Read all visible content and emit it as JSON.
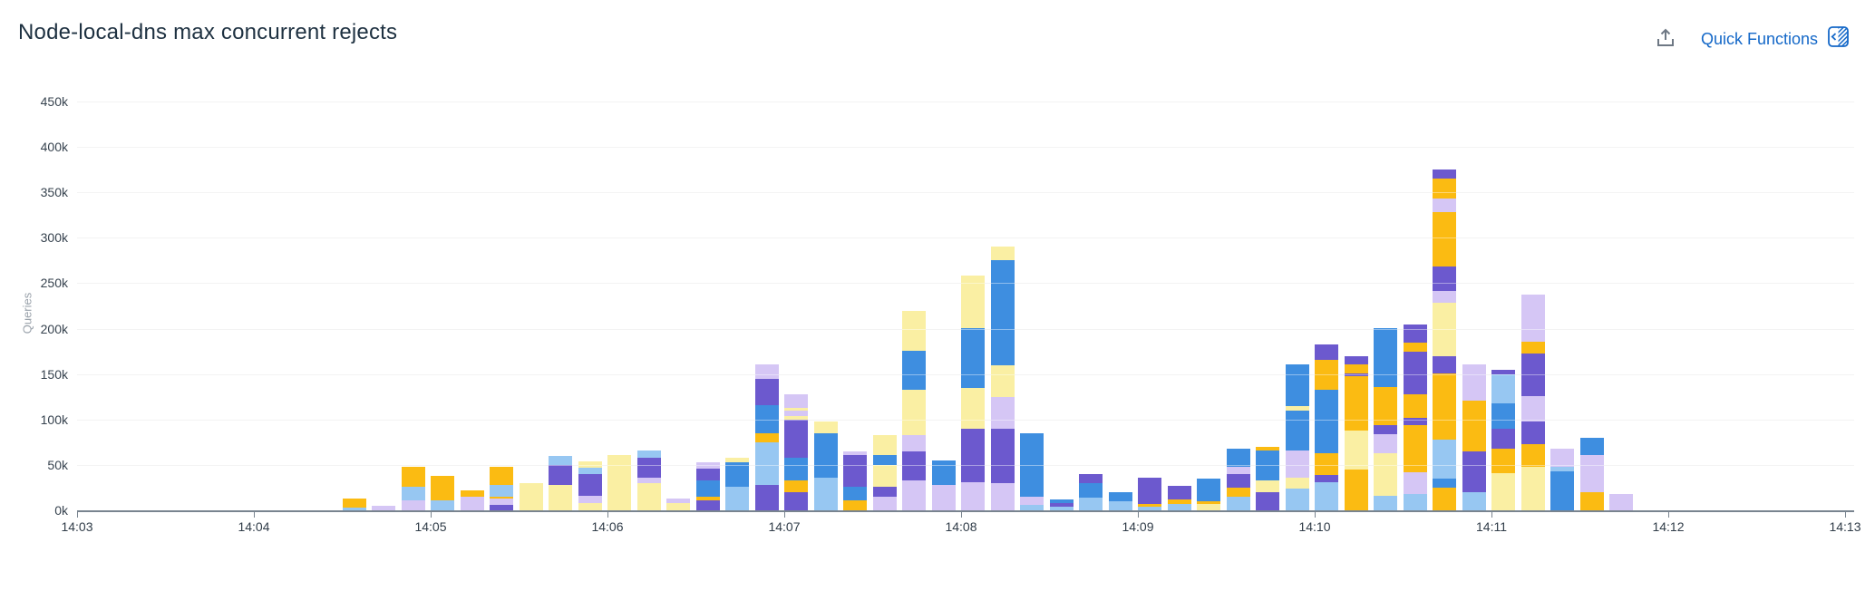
{
  "header": {
    "title": "Node-local-dns max concurrent rejects",
    "quick_functions_label": "Quick Functions"
  },
  "colors": {
    "link_blue": "#1468c8",
    "icon_gray": "#6e7884",
    "title_text": "#1e3141",
    "axis_text": "#37434f",
    "muted_text": "#9aa2ab",
    "gridline": "#ebebeb",
    "axis_line": "#79848f"
  },
  "chart_data": {
    "type": "bar",
    "stacked": true,
    "title": "Node-local-dns max concurrent rejects",
    "xlabel": "",
    "ylabel": "Queries",
    "ylim": [
      0,
      450000
    ],
    "ytick_step": 50000,
    "ytick_labels": [
      "0k",
      "50k",
      "100k",
      "150k",
      "200k",
      "250k",
      "300k",
      "350k",
      "400k",
      "450k"
    ],
    "xtick_labels": [
      "14:03",
      "14:04",
      "14:05",
      "14:06",
      "14:07",
      "14:08",
      "14:09",
      "14:10",
      "14:11",
      "14:12",
      "14:13"
    ],
    "bar_interval_seconds": 10,
    "values_unit": "thousands of queries (k)",
    "grid": true,
    "legend": "none",
    "palette": {
      "gold": "#fbbb12",
      "paleYellow": "#faefa3",
      "blue": "#3e8ee0",
      "lightBlue": "#97c7f2",
      "purple": "#6c59ce",
      "lavender": "#d5c6f5"
    },
    "bars": [
      {
        "time": "14:04:30",
        "segments": [
          [
            "lightBlue",
            3
          ],
          [
            "gold",
            10
          ]
        ]
      },
      {
        "time": "14:04:40",
        "segments": [
          [
            "lavender",
            5
          ]
        ]
      },
      {
        "time": "14:04:50",
        "segments": [
          [
            "lavender",
            11
          ],
          [
            "lightBlue",
            15
          ],
          [
            "gold",
            22
          ]
        ]
      },
      {
        "time": "14:05:00",
        "segments": [
          [
            "lightBlue",
            11
          ],
          [
            "gold",
            27
          ]
        ]
      },
      {
        "time": "14:05:10",
        "segments": [
          [
            "lavender",
            15
          ],
          [
            "gold",
            7
          ]
        ]
      },
      {
        "time": "14:05:20",
        "segments": [
          [
            "purple",
            6
          ],
          [
            "lavender",
            7
          ],
          [
            "gold",
            2
          ],
          [
            "lightBlue",
            13
          ],
          [
            "gold",
            20
          ]
        ]
      },
      {
        "time": "14:05:30",
        "segments": [
          [
            "paleYellow",
            30
          ]
        ]
      },
      {
        "time": "14:05:40",
        "segments": [
          [
            "paleYellow",
            28
          ],
          [
            "purple",
            22
          ],
          [
            "lightBlue",
            10
          ]
        ]
      },
      {
        "time": "14:05:50",
        "segments": [
          [
            "paleYellow",
            8
          ],
          [
            "lavender",
            8
          ],
          [
            "purple",
            24
          ],
          [
            "lightBlue",
            7
          ],
          [
            "paleYellow",
            7
          ]
        ]
      },
      {
        "time": "14:06:00",
        "segments": [
          [
            "paleYellow",
            61
          ]
        ]
      },
      {
        "time": "14:06:10",
        "segments": [
          [
            "paleYellow",
            30
          ],
          [
            "lavender",
            6
          ],
          [
            "purple",
            22
          ],
          [
            "lightBlue",
            8
          ]
        ]
      },
      {
        "time": "14:06:20",
        "segments": [
          [
            "paleYellow",
            8
          ],
          [
            "lavender",
            5
          ]
        ]
      },
      {
        "time": "14:06:30",
        "segments": [
          [
            "purple",
            11
          ],
          [
            "gold",
            4
          ],
          [
            "blue",
            18
          ],
          [
            "purple",
            13
          ],
          [
            "lavender",
            7
          ]
        ]
      },
      {
        "time": "14:06:40",
        "segments": [
          [
            "lightBlue",
            26
          ],
          [
            "blue",
            27
          ],
          [
            "paleYellow",
            5
          ]
        ]
      },
      {
        "time": "14:06:50",
        "segments": [
          [
            "purple",
            28
          ],
          [
            "lightBlue",
            47
          ],
          [
            "gold",
            10
          ],
          [
            "blue",
            31
          ],
          [
            "purple",
            29
          ],
          [
            "lavender",
            16
          ]
        ]
      },
      {
        "time": "14:07:00",
        "segments": [
          [
            "purple",
            20
          ],
          [
            "gold",
            13
          ],
          [
            "blue",
            25
          ],
          [
            "purple",
            42
          ],
          [
            "paleYellow",
            4
          ],
          [
            "lavender",
            6
          ],
          [
            "paleYellow",
            3
          ],
          [
            "lavender",
            15
          ]
        ]
      },
      {
        "time": "14:07:10",
        "segments": [
          [
            "lightBlue",
            36
          ],
          [
            "blue",
            49
          ],
          [
            "paleYellow",
            13
          ]
        ]
      },
      {
        "time": "14:07:20",
        "segments": [
          [
            "gold",
            11
          ],
          [
            "blue",
            15
          ],
          [
            "purple",
            35
          ],
          [
            "lavender",
            4
          ]
        ]
      },
      {
        "time": "14:07:30",
        "segments": [
          [
            "lavender",
            15
          ],
          [
            "purple",
            11
          ],
          [
            "paleYellow",
            24
          ],
          [
            "blue",
            11
          ],
          [
            "paleYellow",
            22
          ]
        ]
      },
      {
        "time": "14:07:40",
        "segments": [
          [
            "lavender",
            33
          ],
          [
            "purple",
            32
          ],
          [
            "lavender",
            18
          ],
          [
            "paleYellow",
            50
          ],
          [
            "blue",
            43
          ],
          [
            "paleYellow",
            44
          ]
        ]
      },
      {
        "time": "14:07:50",
        "segments": [
          [
            "lavender",
            28
          ],
          [
            "blue",
            27
          ]
        ]
      },
      {
        "time": "14:08:00",
        "segments": [
          [
            "lavender",
            31
          ],
          [
            "purple",
            59
          ],
          [
            "paleYellow",
            45
          ],
          [
            "blue",
            65
          ],
          [
            "paleYellow",
            58
          ]
        ]
      },
      {
        "time": "14:08:10",
        "segments": [
          [
            "lavender",
            30
          ],
          [
            "purple",
            60
          ],
          [
            "lavender",
            35
          ],
          [
            "paleYellow",
            35
          ],
          [
            "blue",
            115
          ],
          [
            "paleYellow",
            15
          ]
        ]
      },
      {
        "time": "14:08:20",
        "segments": [
          [
            "lightBlue",
            6
          ],
          [
            "lavender",
            9
          ],
          [
            "blue",
            70
          ]
        ]
      },
      {
        "time": "14:08:30",
        "segments": [
          [
            "lightBlue",
            4
          ],
          [
            "purple",
            4
          ],
          [
            "blue",
            4
          ]
        ]
      },
      {
        "time": "14:08:40",
        "segments": [
          [
            "lightBlue",
            14
          ],
          [
            "blue",
            16
          ],
          [
            "purple",
            10
          ]
        ]
      },
      {
        "time": "14:08:50",
        "segments": [
          [
            "lightBlue",
            10
          ],
          [
            "blue",
            10
          ]
        ]
      },
      {
        "time": "14:09:00",
        "segments": [
          [
            "lightBlue",
            4
          ],
          [
            "gold",
            3
          ],
          [
            "purple",
            29
          ]
        ]
      },
      {
        "time": "14:09:10",
        "segments": [
          [
            "lightBlue",
            7
          ],
          [
            "gold",
            5
          ],
          [
            "purple",
            15
          ]
        ]
      },
      {
        "time": "14:09:20",
        "segments": [
          [
            "paleYellow",
            7
          ],
          [
            "gold",
            3
          ],
          [
            "blue",
            25
          ]
        ]
      },
      {
        "time": "14:09:30",
        "segments": [
          [
            "lightBlue",
            15
          ],
          [
            "gold",
            10
          ],
          [
            "purple",
            15
          ],
          [
            "lavender",
            8
          ],
          [
            "blue",
            20
          ]
        ]
      },
      {
        "time": "14:09:40",
        "segments": [
          [
            "purple",
            20
          ],
          [
            "paleYellow",
            13
          ],
          [
            "blue",
            33
          ],
          [
            "gold",
            4
          ]
        ]
      },
      {
        "time": "14:09:50",
        "segments": [
          [
            "lightBlue",
            24
          ],
          [
            "paleYellow",
            12
          ],
          [
            "lavender",
            30
          ],
          [
            "blue",
            44
          ],
          [
            "paleYellow",
            5
          ],
          [
            "blue",
            46
          ]
        ]
      },
      {
        "time": "14:10:00",
        "segments": [
          [
            "lightBlue",
            31
          ],
          [
            "purple",
            8
          ],
          [
            "gold",
            24
          ],
          [
            "blue",
            70
          ],
          [
            "gold",
            33
          ],
          [
            "purple",
            17
          ]
        ]
      },
      {
        "time": "14:10:10",
        "segments": [
          [
            "gold",
            45
          ],
          [
            "paleYellow",
            43
          ],
          [
            "gold",
            60
          ],
          [
            "purple",
            3
          ],
          [
            "gold",
            10
          ],
          [
            "purple",
            9
          ]
        ]
      },
      {
        "time": "14:10:20",
        "segments": [
          [
            "lightBlue",
            16
          ],
          [
            "paleYellow",
            47
          ],
          [
            "lavender",
            21
          ],
          [
            "purple",
            10
          ],
          [
            "gold",
            42
          ],
          [
            "blue",
            65
          ]
        ]
      },
      {
        "time": "14:10:30",
        "segments": [
          [
            "lightBlue",
            18
          ],
          [
            "lavender",
            24
          ],
          [
            "gold",
            52
          ],
          [
            "purple",
            8
          ],
          [
            "gold",
            26
          ],
          [
            "purple",
            47
          ],
          [
            "gold",
            10
          ],
          [
            "purple",
            20
          ]
        ]
      },
      {
        "time": "14:10:40",
        "segments": [
          [
            "gold",
            25
          ],
          [
            "blue",
            10
          ],
          [
            "lightBlue",
            43
          ],
          [
            "gold",
            73
          ],
          [
            "purple",
            19
          ],
          [
            "paleYellow",
            58
          ],
          [
            "lavender",
            13
          ],
          [
            "purple",
            27
          ],
          [
            "gold",
            60
          ],
          [
            "lavender",
            15
          ],
          [
            "gold",
            22
          ],
          [
            "purple",
            10
          ]
        ]
      },
      {
        "time": "14:10:50",
        "segments": [
          [
            "lightBlue",
            20
          ],
          [
            "purple",
            45
          ],
          [
            "gold",
            56
          ],
          [
            "lavender",
            40
          ]
        ]
      },
      {
        "time": "14:11:00",
        "segments": [
          [
            "paleYellow",
            41
          ],
          [
            "gold",
            27
          ],
          [
            "purple",
            22
          ],
          [
            "blue",
            28
          ],
          [
            "lightBlue",
            32
          ],
          [
            "purple",
            5
          ]
        ]
      },
      {
        "time": "14:11:10",
        "segments": [
          [
            "paleYellow",
            48
          ],
          [
            "gold",
            25
          ],
          [
            "purple",
            25
          ],
          [
            "lavender",
            28
          ],
          [
            "purple",
            47
          ],
          [
            "gold",
            13
          ],
          [
            "lavender",
            52
          ]
        ]
      },
      {
        "time": "14:11:20",
        "segments": [
          [
            "blue",
            43
          ],
          [
            "lightBlue",
            5
          ],
          [
            "lavender",
            20
          ]
        ]
      },
      {
        "time": "14:11:30",
        "segments": [
          [
            "gold",
            20
          ],
          [
            "lavender",
            41
          ],
          [
            "blue",
            19
          ]
        ]
      },
      {
        "time": "14:11:40",
        "segments": [
          [
            "lavender",
            18
          ]
        ]
      }
    ]
  }
}
